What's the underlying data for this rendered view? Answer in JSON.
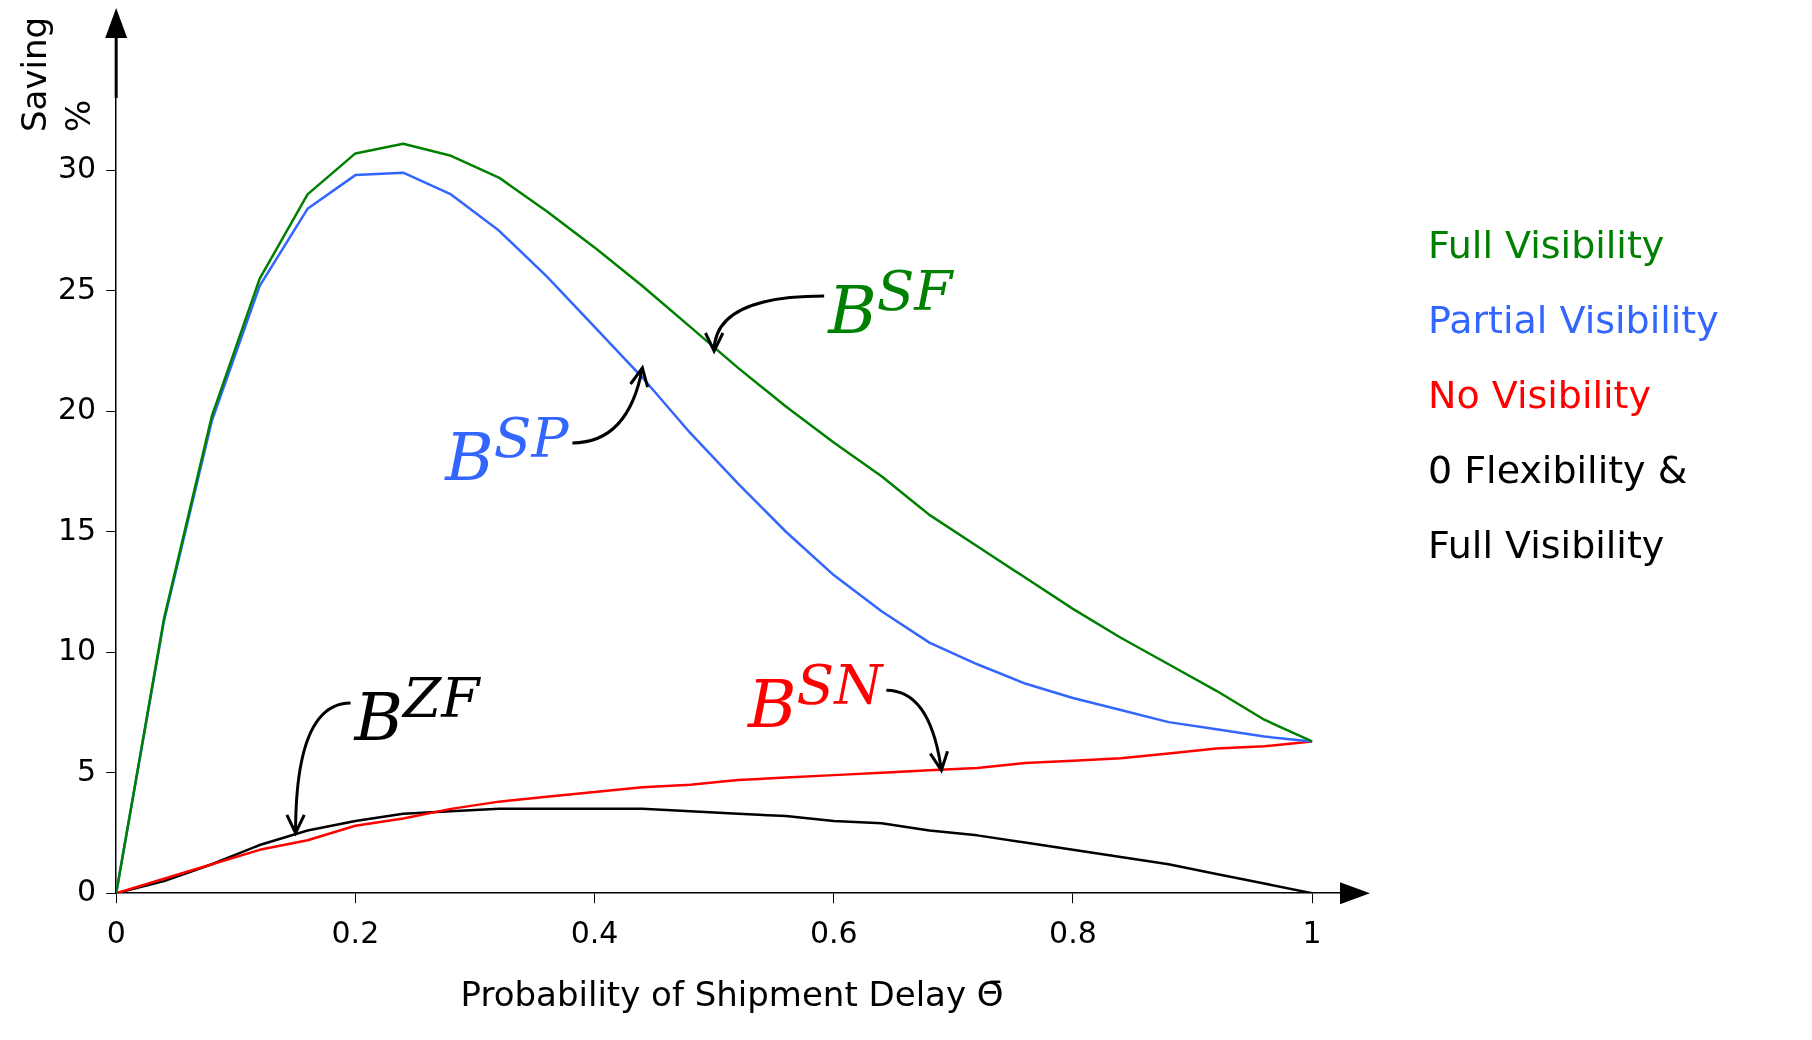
{
  "chart_data": {
    "type": "line",
    "xlabel": "Probability of Shipment Delay Θ̄",
    "ylabel": "Saving %",
    "x": [
      0,
      0.04,
      0.08,
      0.12,
      0.16,
      0.2,
      0.24,
      0.28,
      0.32,
      0.36,
      0.4,
      0.44,
      0.48,
      0.52,
      0.56,
      0.6,
      0.64,
      0.68,
      0.72,
      0.76,
      0.8,
      0.84,
      0.88,
      0.92,
      0.96,
      1
    ],
    "series": [
      {
        "name": "Full Visibility",
        "color": "#008000",
        "values": [
          0,
          11.4,
          19.8,
          25.5,
          29.0,
          30.7,
          31.1,
          30.6,
          29.7,
          28.3,
          26.8,
          25.2,
          23.5,
          21.8,
          20.2,
          18.7,
          17.3,
          15.7,
          14.4,
          13.1,
          11.8,
          10.6,
          9.5,
          8.4,
          7.2,
          6.3
        ]
      },
      {
        "name": "Partial Visibility",
        "color": "#3366ff",
        "values": [
          0,
          11.3,
          19.6,
          25.2,
          28.4,
          29.8,
          29.9,
          29.0,
          27.5,
          25.6,
          23.5,
          21.4,
          19.1,
          17.0,
          15.0,
          13.2,
          11.7,
          10.4,
          9.5,
          8.7,
          8.1,
          7.6,
          7.1,
          6.8,
          6.5,
          6.3
        ]
      },
      {
        "name": "No Visibility",
        "color": "#ff0000",
        "values": [
          0,
          0.6,
          1.2,
          1.8,
          2.2,
          2.8,
          3.1,
          3.5,
          3.8,
          4.0,
          4.2,
          4.4,
          4.5,
          4.7,
          4.8,
          4.9,
          5.0,
          5.1,
          5.2,
          5.4,
          5.5,
          5.6,
          5.8,
          6.0,
          6.1,
          6.3
        ]
      },
      {
        "name": "0 Flexibility & Full Visibility",
        "color": "#000000",
        "values": [
          0,
          0.5,
          1.2,
          2.0,
          2.6,
          3.0,
          3.3,
          3.4,
          3.5,
          3.5,
          3.5,
          3.5,
          3.4,
          3.3,
          3.2,
          3.0,
          2.9,
          2.6,
          2.4,
          2.1,
          1.8,
          1.5,
          1.2,
          0.8,
          0.4,
          0
        ]
      }
    ],
    "annotations": [
      {
        "text": "B$^{SF}$",
        "x": 0.5,
        "y": 22.5
      },
      {
        "text": "B$^{SP}$",
        "x": 0.44,
        "y": 21.8
      },
      {
        "text": "B$^{SN}$",
        "x": 0.69,
        "y": 5.1
      },
      {
        "text": "B$^{ZF}$",
        "x": 0.15,
        "y": 2.5
      }
    ],
    "xlim": [
      0,
      1.03
    ],
    "xticks": [
      0,
      0.2,
      0.4,
      0.6,
      0.8,
      1
    ],
    "ylim": [
      0,
      33
    ],
    "yticks": [
      0,
      5,
      10,
      15,
      20,
      25,
      30
    ],
    "grid": false,
    "legend": "right",
    "marker": "none",
    "line_style": "solid"
  }
}
